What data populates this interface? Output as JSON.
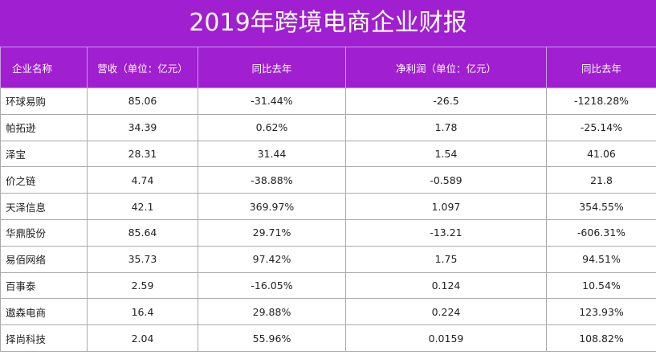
{
  "title": "2019年跨境电商企业财报",
  "header": {
    "col1": "企业名称",
    "col2": "营收（单位：亿元）",
    "col3": "同比去年",
    "col4": "净利润（单位：亿元）",
    "col5": "同比去年"
  },
  "rows": [
    {
      "name": "环球易购",
      "revenue": "85.06",
      "revenue_yoy": "-31.44%",
      "profit": "-26.5",
      "profit_yoy": "-1218.28%"
    },
    {
      "name": "帕拓逊",
      "revenue": "34.39",
      "revenue_yoy": "0.62%",
      "profit": "1.78",
      "profit_yoy": "-25.14%"
    },
    {
      "name": "泽宝",
      "revenue": "28.31",
      "revenue_yoy": "31.44",
      "profit": "1.54",
      "profit_yoy": "41.06"
    },
    {
      "name": "价之链",
      "revenue": "4.74",
      "revenue_yoy": "-38.88%",
      "profit": "-0.589",
      "profit_yoy": "21.8"
    },
    {
      "name": "天泽信息",
      "revenue": "42.1",
      "revenue_yoy": "369.97%",
      "profit": "1.097",
      "profit_yoy": "354.55%"
    },
    {
      "name": "华鼎股份",
      "revenue": "85.64",
      "revenue_yoy": "29.71%",
      "profit": "-13.21",
      "profit_yoy": "-606.31%"
    },
    {
      "name": "易佰网络",
      "revenue": "35.73",
      "revenue_yoy": "97.42%",
      "profit": "1.75",
      "profit_yoy": "94.51%"
    },
    {
      "name": "百事泰",
      "revenue": "2.59",
      "revenue_yoy": "-16.05%",
      "profit": "0.124",
      "profit_yoy": "10.54%"
    },
    {
      "name": "遨森电商",
      "revenue": "16.4",
      "revenue_yoy": "29.88%",
      "profit": "0.224",
      "profit_yoy": "123.93%"
    },
    {
      "name": "择尚科技",
      "revenue": "2.04",
      "revenue_yoy": "55.96%",
      "profit": "0.0159",
      "profit_yoy": "108.82%"
    }
  ],
  "colors": {
    "header_bg": "#a01fd0",
    "header_text": "#ffffff",
    "border": "#aaaaaa"
  }
}
